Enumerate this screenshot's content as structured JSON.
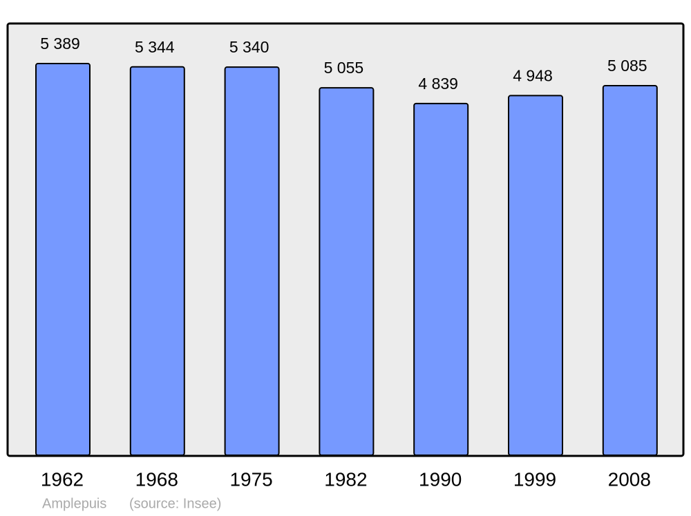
{
  "chart_data": {
    "type": "bar",
    "categories": [
      "1962",
      "1968",
      "1975",
      "1982",
      "1990",
      "1999",
      "2008"
    ],
    "values": [
      5389,
      5344,
      5340,
      5055,
      4839,
      4948,
      5085
    ],
    "value_labels": [
      "5 389",
      "5 344",
      "5 340",
      "5 055",
      "4 839",
      "4 948",
      "5 085"
    ],
    "color": "#7699ff",
    "place": "Amplepuis",
    "source": "(source: Insee)"
  }
}
